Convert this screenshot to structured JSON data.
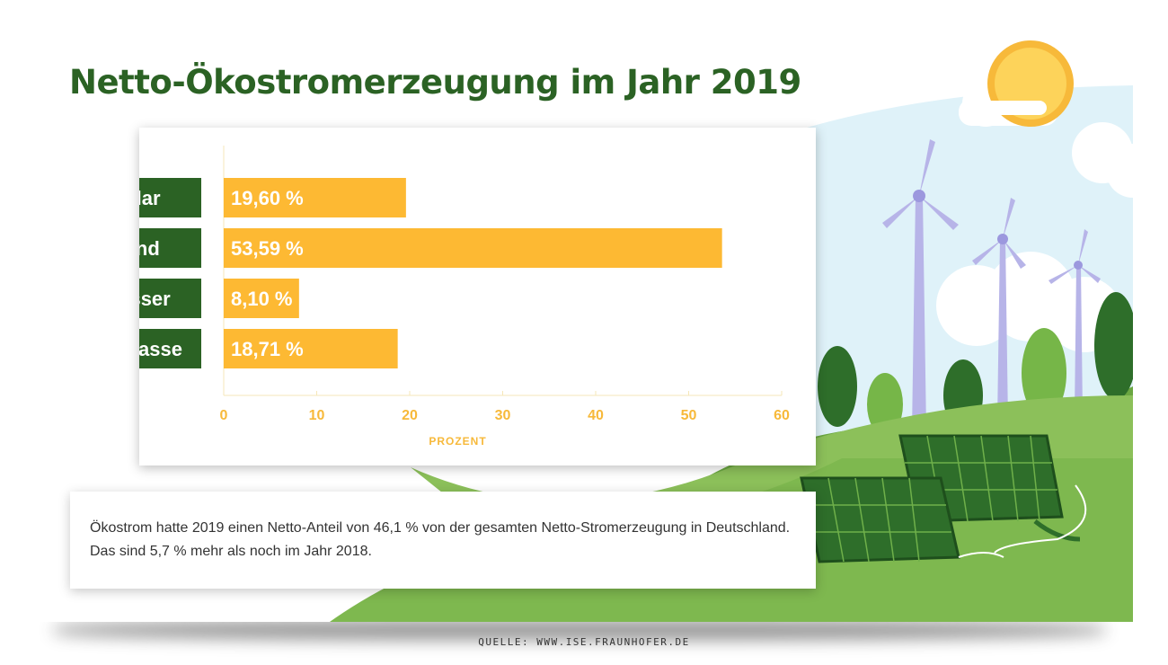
{
  "title": "Netto-Ökostromerzeugung im Jahr 2019",
  "info_text": "Ökostrom hatte 2019 einen Netto-Anteil von 46,1 % von der gesamten Netto-Stromerzeugung in Deutschland. Das sind 5,7 % mehr als noch im Jahr 2018.",
  "source": "QUELLE: WWW.ISE.FRAUNHOFER.DE",
  "chart_data": {
    "type": "bar",
    "orientation": "horizontal",
    "categories": [
      "Solar",
      "Wind",
      "Wasser",
      "Biomasse"
    ],
    "values": [
      19.6,
      53.59,
      8.1,
      18.71
    ],
    "value_labels": [
      "19,60 %",
      "53,59 %",
      "8,10 %",
      "18,71 %"
    ],
    "xlabel": "PROZENT",
    "xlim": [
      0,
      60
    ],
    "xticks": [
      0,
      10,
      20,
      30,
      40,
      50,
      60
    ],
    "xtick_labels": [
      "0",
      "10",
      "20",
      "30",
      "40",
      "50",
      "60"
    ]
  },
  "colors": {
    "title": "#2b6224",
    "bar": "#fdb933",
    "category_box": "#2b6224",
    "axis": "#f7b93a"
  }
}
